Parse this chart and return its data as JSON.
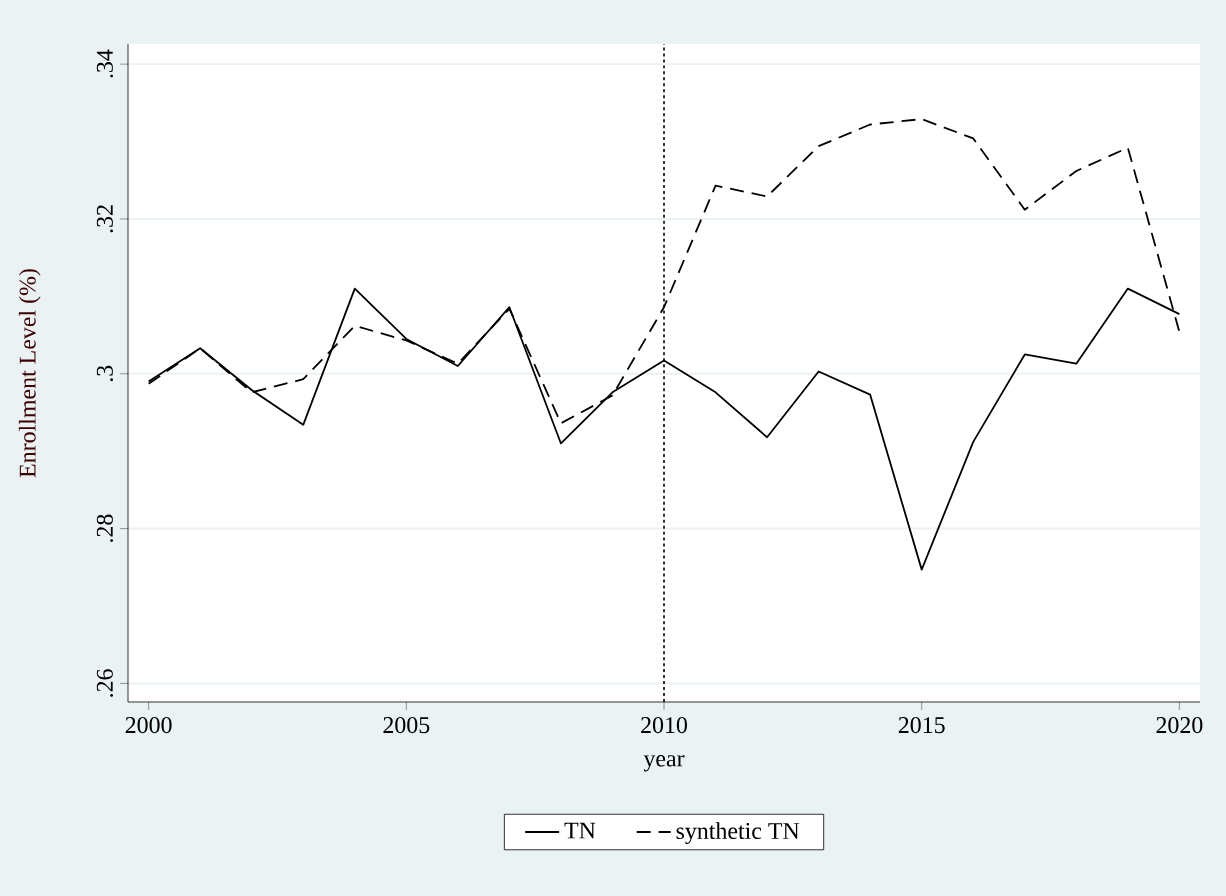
{
  "chart_data": {
    "type": "line",
    "xlabel": "year",
    "ylabel": "Enrollment Level (%)",
    "x": [
      2000,
      2001,
      2002,
      2003,
      2004,
      2005,
      2006,
      2007,
      2008,
      2009,
      2010,
      2011,
      2012,
      2013,
      2014,
      2015,
      2016,
      2017,
      2018,
      2019,
      2020
    ],
    "series": [
      {
        "name": "TN",
        "color": "#000000",
        "line_style": "solid",
        "values": [
          0.299,
          0.3033,
          0.2979,
          0.2934,
          0.311,
          0.3045,
          0.301,
          0.3086,
          0.291,
          0.2976,
          0.3017,
          0.2976,
          0.2918,
          0.3003,
          0.2973,
          0.2747,
          0.2912,
          0.3025,
          0.3013,
          0.311,
          0.3077
        ]
      },
      {
        "name": "synthetic TN",
        "color": "#000000",
        "line_style": "dashed",
        "values": [
          0.2987,
          0.3033,
          0.2976,
          0.2993,
          0.3062,
          0.3043,
          0.3013,
          0.3084,
          0.2936,
          0.2972,
          0.3086,
          0.3243,
          0.3229,
          0.3294,
          0.3322,
          0.3329,
          0.3304,
          0.3212,
          0.3262,
          0.3292,
          0.3054
        ]
      }
    ],
    "xlim": [
      1999.6,
      2020.4
    ],
    "ylim": [
      0.2576,
      0.3426
    ],
    "xticks": [
      2000,
      2005,
      2010,
      2015,
      2020
    ],
    "yticks": [
      {
        "value": 0.26,
        "label": ".26"
      },
      {
        "value": 0.28,
        "label": ".28"
      },
      {
        "value": 0.3,
        "label": ".3"
      },
      {
        "value": 0.32,
        "label": ".32"
      },
      {
        "value": 0.34,
        "label": ".34"
      }
    ],
    "ref_lines": [
      {
        "axis": "x",
        "value": 2010,
        "line_style": "dotted",
        "color": "#000000"
      }
    ],
    "grid": "y",
    "legend": "bottom",
    "marker": "none"
  }
}
